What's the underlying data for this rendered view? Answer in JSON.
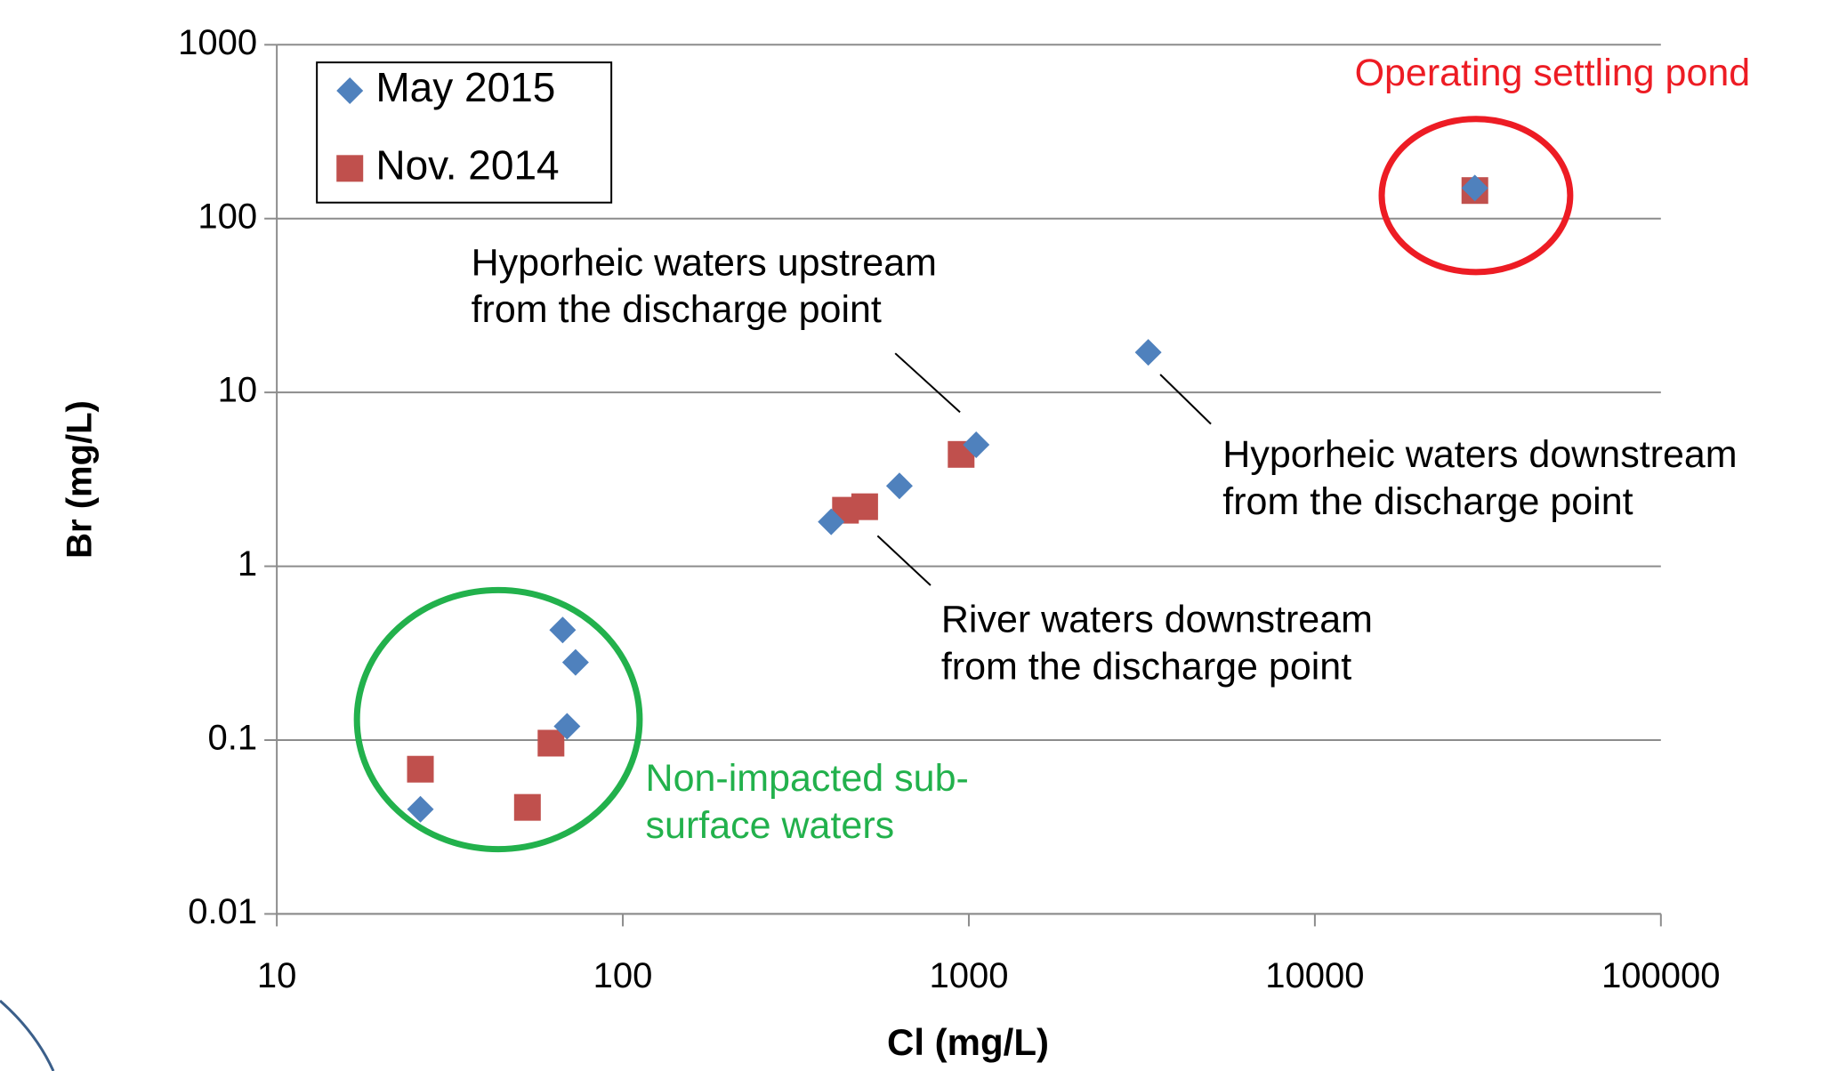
{
  "chart_data": {
    "type": "scatter",
    "x_label": "Cl (mg/L)",
    "y_label": "Br (mg/L)",
    "xscale": "log",
    "yscale": "log",
    "xlim": [
      10,
      100000
    ],
    "ylim": [
      0.01,
      1000
    ],
    "xticks": [
      10,
      100,
      1000,
      10000,
      100000
    ],
    "yticks": [
      0.01,
      0.1,
      1,
      10,
      100,
      1000
    ],
    "grid": true,
    "legend": "upper left",
    "series": [
      {
        "name": "May 2015",
        "color": "#4f81bd",
        "marker": "diamond",
        "x": [
          3300,
          1050,
          630,
          400,
          67,
          73,
          69,
          26,
          29000
        ],
        "values": [
          17,
          5,
          2.9,
          1.8,
          0.43,
          0.28,
          0.12,
          0.04,
          150
        ]
      },
      {
        "name": "Nov. 2014",
        "color": "#c0504d",
        "marker": "square",
        "x": [
          29000,
          950,
          440,
          500,
          62,
          26,
          53
        ],
        "values": [
          145,
          4.4,
          2.1,
          2.2,
          0.096,
          0.068,
          0.041
        ]
      }
    ],
    "annotations": [
      {
        "text": [
          "Hyporheic waters upstream",
          "from the discharge point"
        ],
        "color": "#000000"
      },
      {
        "text": [
          "Hyporheic waters downstream",
          "from the discharge point"
        ],
        "color": "#000000"
      },
      {
        "text": [
          "River waters downstream",
          "from the discharge point"
        ],
        "color": "#000000"
      },
      {
        "text": [
          "Non-impacted sub-",
          "surface waters"
        ],
        "color": "#22b14c"
      },
      {
        "text": [
          "Operating settling pond"
        ],
        "color": "#ed1c24"
      }
    ]
  }
}
